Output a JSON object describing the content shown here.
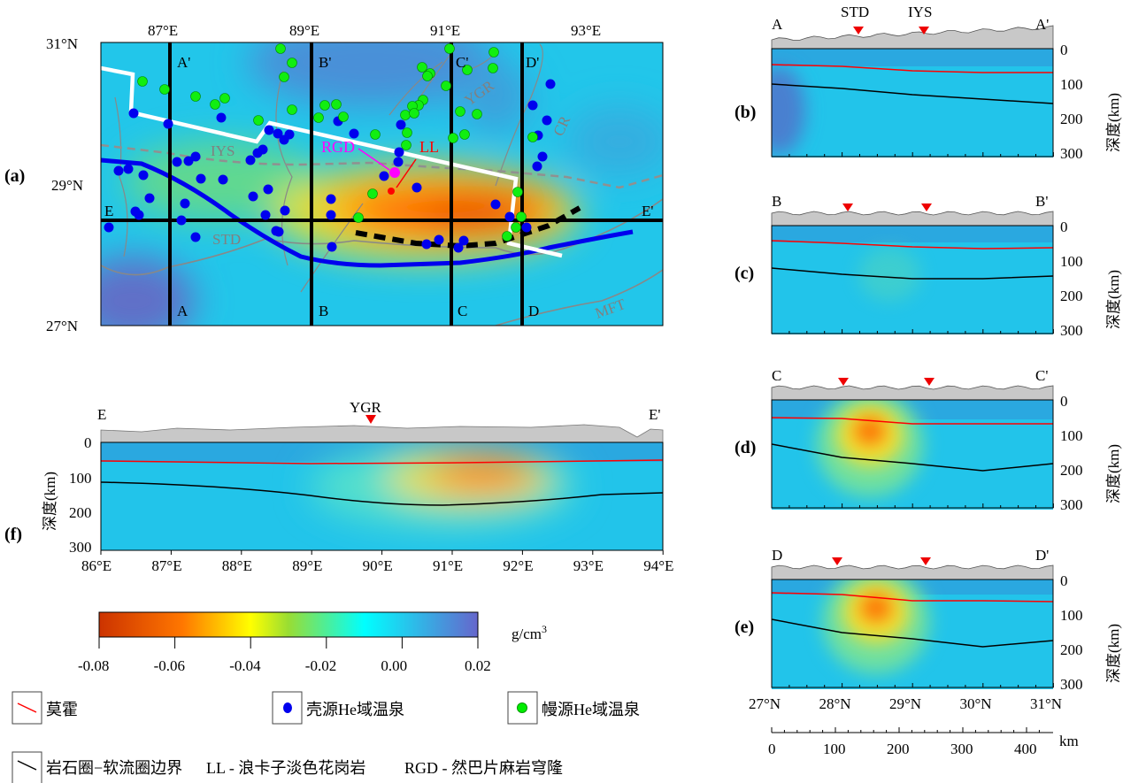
{
  "panels": {
    "a": "(a)",
    "b": "(b)",
    "c": "(c)",
    "d": "(d)",
    "e": "(e)",
    "f": "(f)"
  },
  "map": {
    "lon_ticks": [
      "87°E",
      "89°E",
      "91°E",
      "93°E"
    ],
    "lat_ticks": [
      "31°N",
      "29°N",
      "27°N"
    ],
    "profile_labels": {
      "A": "A",
      "A_": "A'",
      "B": "B",
      "B_": "B'",
      "C": "C",
      "C_": "C'",
      "D": "D",
      "D_": "D'",
      "E": "E",
      "E_": "E'"
    },
    "geology_labels": {
      "iys": "IYS",
      "std": "STD",
      "ygr": "YGR",
      "cr": "CR",
      "mft": "MFT"
    },
    "rgd": "RGD",
    "ll": "LL"
  },
  "sections": {
    "depth_label": "深度(km)",
    "depth_ticks": [
      "0",
      "100",
      "200",
      "300"
    ],
    "lat_ticks": [
      "27°N",
      "28°N",
      "29°N",
      "30°N",
      "31°N"
    ],
    "km_ticks": [
      "0",
      "100",
      "200",
      "300",
      "400"
    ],
    "km_unit": "km",
    "b": {
      "start": "A",
      "end": "A'",
      "marker1": "STD",
      "marker2": "IYS"
    },
    "c": {
      "start": "B",
      "end": "B'"
    },
    "d": {
      "start": "C",
      "end": "C'"
    },
    "e": {
      "start": "D",
      "end": "D'"
    },
    "f": {
      "start": "E",
      "end": "E'",
      "marker": "YGR",
      "lon_ticks": [
        "86°E",
        "87°E",
        "88°E",
        "89°E",
        "90°E",
        "91°E",
        "92°E",
        "93°E",
        "94°E"
      ]
    }
  },
  "colorbar": {
    "ticks": [
      "-0.08",
      "-0.06",
      "-0.04",
      "-0.02",
      "0.00",
      "0.02"
    ],
    "unit": "g/cm",
    "unit_sup": "3",
    "colors": [
      "#cc3300",
      "#ff7700",
      "#ffff00",
      "#00ffff",
      "#6666cc"
    ]
  },
  "legend": {
    "moho": "莫霍",
    "crust_spring": "壳源He域温泉",
    "mantle_spring": "幔源He域温泉",
    "lab": "岩石圈−软流圈边界",
    "ll": "LL - 浪卡子淡色花岗岩",
    "rgd": "RGD - 然巴片麻岩穹隆"
  },
  "colors": {
    "moho": "#ff0000",
    "lab": "#000000",
    "crust_spring": "#0000ff",
    "mantle_spring": "#00ee00",
    "rgd": "#ff00ff"
  }
}
